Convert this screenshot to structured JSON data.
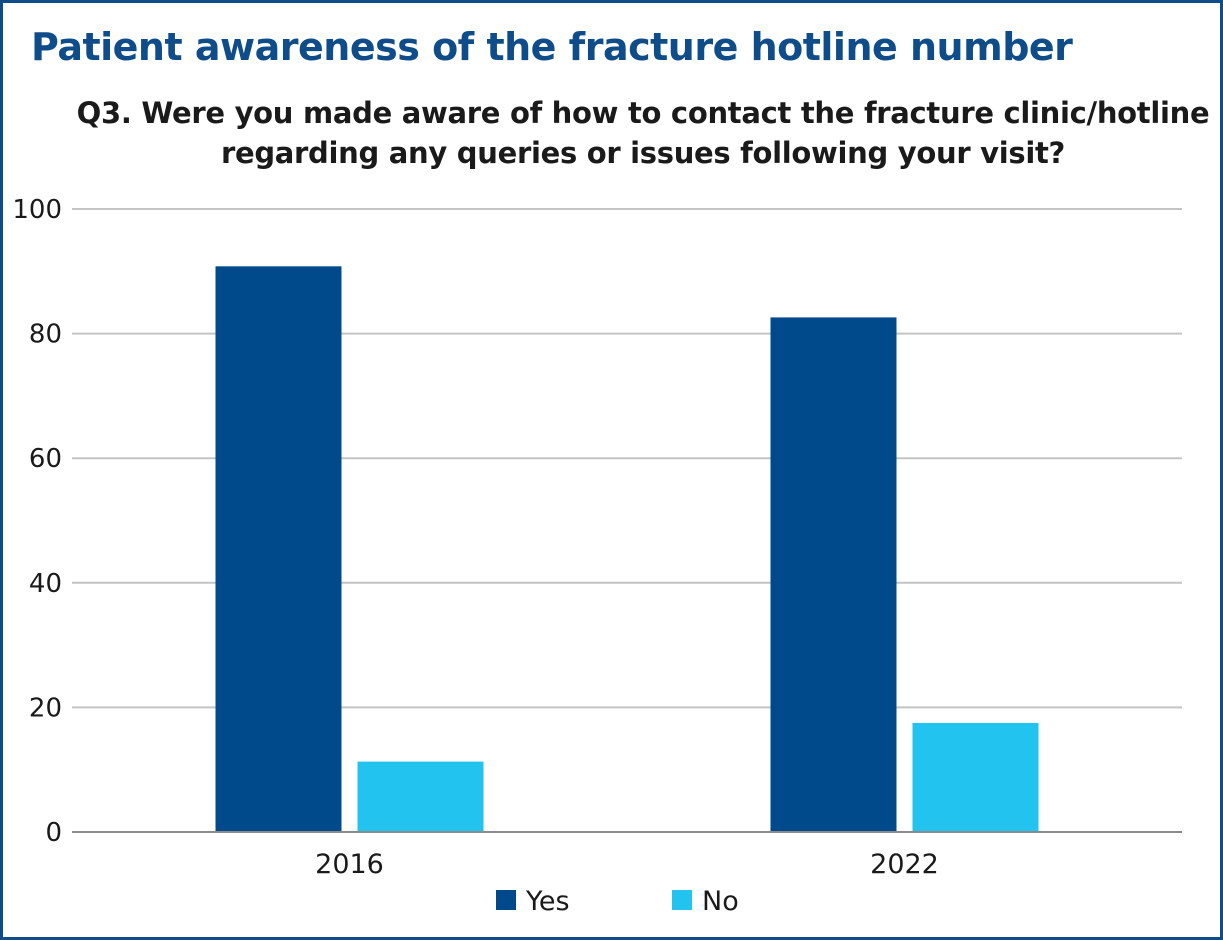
{
  "chart_data": {
    "type": "bar",
    "title": "Patient awareness of the fracture hotline number",
    "subtitle_lines": [
      "Q3. Were you made aware of how to contact the fracture clinic/hotline",
      "regarding any queries or issues following your visit?"
    ],
    "categories": [
      "2016",
      "2022"
    ],
    "series": [
      {
        "name": "Yes",
        "color": "#004a8c",
        "values": [
          90.8,
          82.6
        ]
      },
      {
        "name": "No",
        "color": "#22c3ef",
        "values": [
          11.3,
          17.5
        ]
      }
    ],
    "ylim": [
      0,
      100
    ],
    "yticks": [
      "0",
      "20",
      "40",
      "60",
      "80",
      "100"
    ],
    "xlabel": "",
    "ylabel": "",
    "grid": true,
    "legend_position": "bottom"
  }
}
